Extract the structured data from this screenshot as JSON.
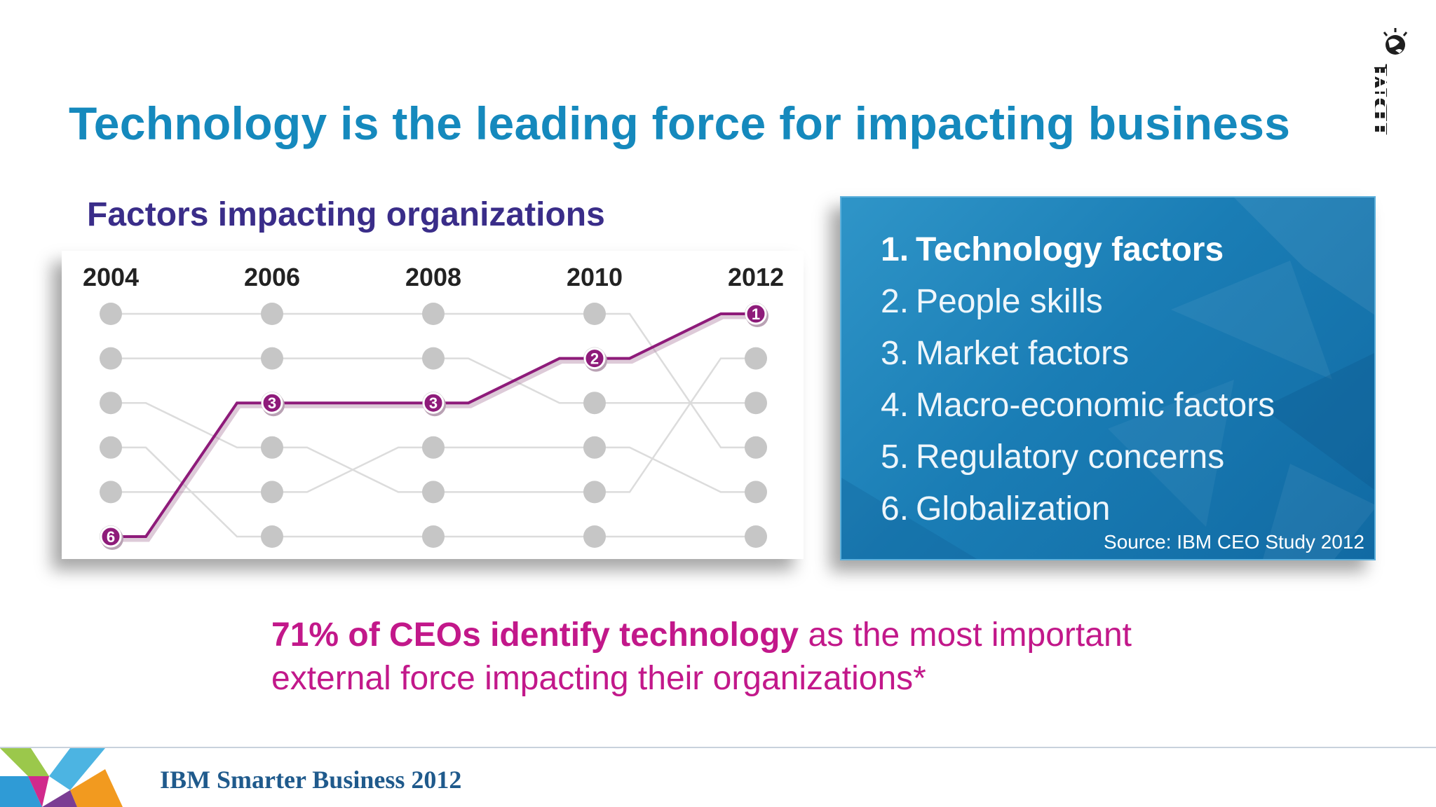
{
  "slide": {
    "title": "Technology is the leading force for impacting business",
    "subtitle": "Factors impacting organizations",
    "logo_text": "IBM"
  },
  "chart_data": {
    "type": "line",
    "title": "Factors impacting organizations",
    "x": [
      "2004",
      "2006",
      "2008",
      "2010",
      "2012"
    ],
    "rank_levels": [
      1,
      2,
      3,
      4,
      5,
      6
    ],
    "y_inverted": true,
    "highlight_series": {
      "name": "Technology factors",
      "color": "#8e1b7a",
      "ranks": [
        6,
        3,
        3,
        2,
        1
      ]
    },
    "background_series": [
      {
        "ranks": [
          1,
          1,
          1,
          1,
          4
        ]
      },
      {
        "ranks": [
          2,
          2,
          2,
          3,
          3
        ]
      },
      {
        "ranks": [
          3,
          4,
          5,
          5,
          2
        ]
      },
      {
        "ranks": [
          4,
          6,
          6,
          6,
          6
        ]
      },
      {
        "ranks": [
          5,
          5,
          4,
          4,
          5
        ]
      }
    ],
    "dot_color": "#c6c6c6",
    "background_line_color": "#dcdcdc"
  },
  "ranking": {
    "items": [
      {
        "num": "1.",
        "label": "Technology factors"
      },
      {
        "num": "2.",
        "label": "People skills"
      },
      {
        "num": "3.",
        "label": "Market factors"
      },
      {
        "num": "4.",
        "label": "Macro-economic factors"
      },
      {
        "num": "5.",
        "label": "Regulatory concerns"
      },
      {
        "num": "6.",
        "label": "Globalization"
      }
    ],
    "source": "Source: IBM CEO Study 2012"
  },
  "stat": {
    "bold": "71% of CEOs identify technology",
    "rest": " as the most important external force impacting their organizations*"
  },
  "footer": {
    "event": "IBM Smarter Business 2012"
  },
  "colors": {
    "title": "#1589bd",
    "subtitle": "#3a2d89",
    "panel": "#1a7db5",
    "stat": "#c2188a",
    "footer_text": "#1f5a8c"
  }
}
